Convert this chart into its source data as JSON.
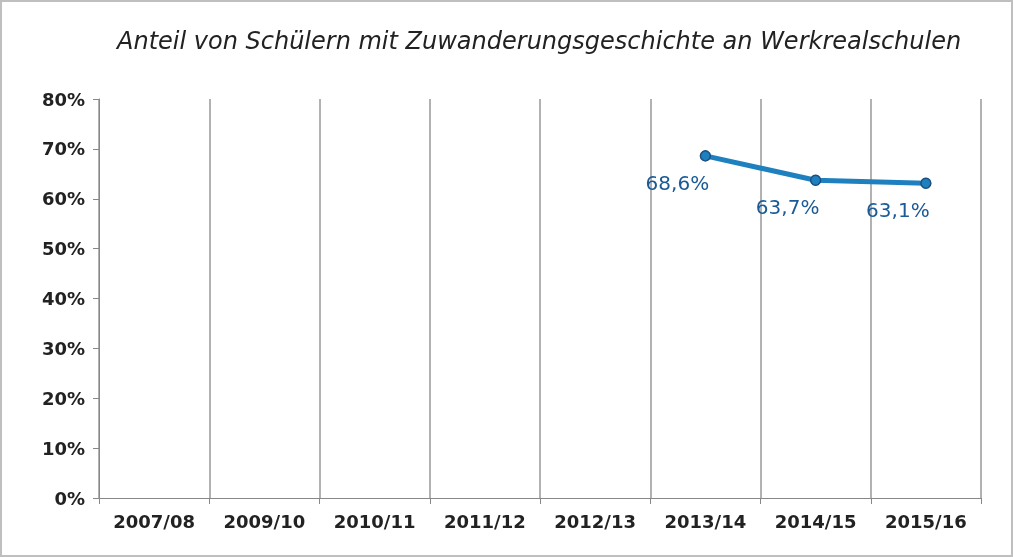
{
  "chart_data": {
    "type": "line",
    "title": "Anteil von Schülern mit Zuwanderungsgeschichte an Werkrealschulen",
    "categories": [
      "2007/08",
      "2009/10",
      "2010/11",
      "2011/12",
      "2012/13",
      "2013/14",
      "2014/15",
      "2015/16"
    ],
    "series": [
      {
        "color": "#1f80c0",
        "values": [
          null,
          null,
          null,
          null,
          null,
          68.6,
          63.7,
          63.1
        ],
        "value_labels": [
          null,
          null,
          null,
          null,
          null,
          "68,6%",
          "63,7%",
          "63,1%"
        ]
      }
    ],
    "ylim": [
      0,
      80
    ],
    "yticks": [
      {
        "value": 0,
        "label": "0%"
      },
      {
        "value": 10,
        "label": "10%"
      },
      {
        "value": 20,
        "label": "20%"
      },
      {
        "value": 30,
        "label": "30%"
      },
      {
        "value": 40,
        "label": "40%"
      },
      {
        "value": 50,
        "label": "50%"
      },
      {
        "value": 60,
        "label": "60%"
      },
      {
        "value": 70,
        "label": "70%"
      },
      {
        "value": 80,
        "label": "80%"
      }
    ],
    "grid": "x",
    "marker": "circle",
    "line_style": "solid"
  }
}
